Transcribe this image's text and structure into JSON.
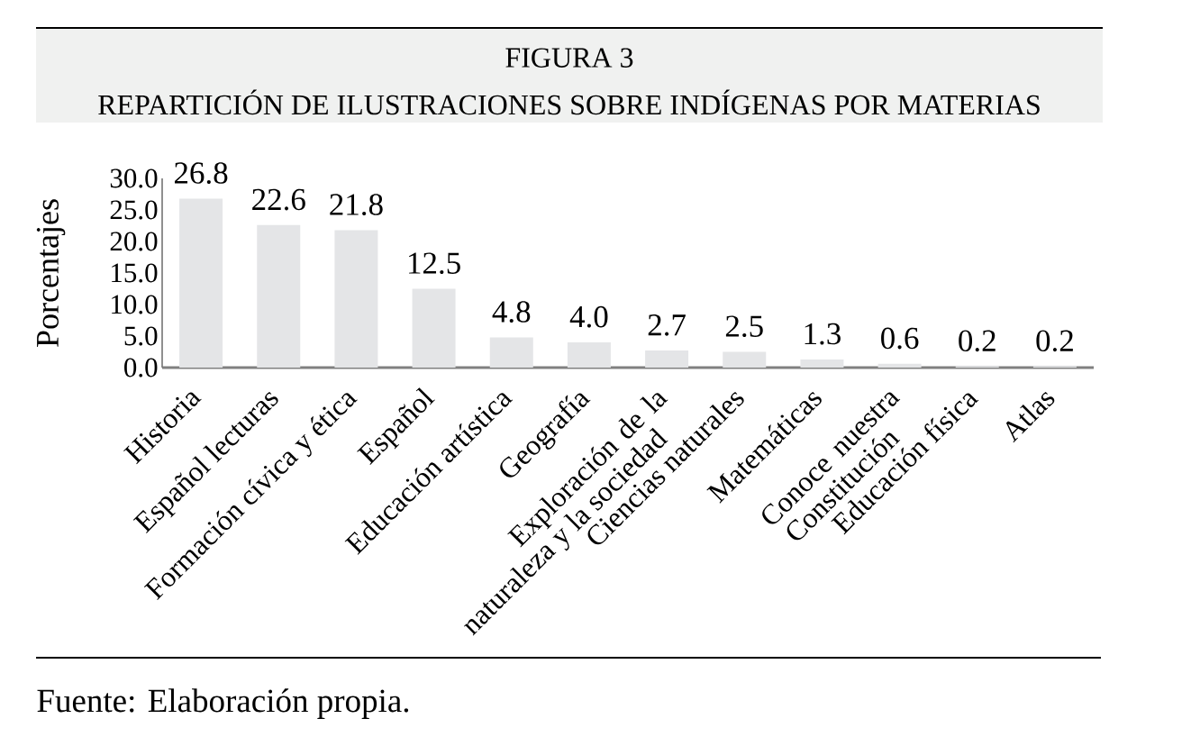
{
  "chart_data": {
    "type": "bar",
    "title": "FIGURA 3",
    "subtitle": "REPARTICIÓN DE ILUSTRACIONES SOBRE INDÍGENAS POR MATERIAS",
    "ylabel": "Porcentajes",
    "categories": [
      "Historia",
      "Español lecturas",
      "Formación cívica y ética",
      "Español",
      "Educación artística",
      "Geografía",
      "Exploración de la naturaleza y la sociedad",
      "Ciencias naturales",
      "Matemáticas",
      "Conoce nuestra Constitución",
      "Educación física",
      "Atlas"
    ],
    "values": [
      26.8,
      22.6,
      21.8,
      12.5,
      4.8,
      4.0,
      2.7,
      2.5,
      1.3,
      0.6,
      0.2,
      0.2
    ],
    "value_labels": [
      "26.8",
      "22.6",
      "21.8",
      "12.5",
      "4.8",
      "4.0",
      "2.7",
      "2.5",
      "1.3",
      "0.6",
      "0.2",
      "0.2"
    ],
    "color": "#e4e5e7",
    "ylim": [
      0,
      30
    ],
    "yticks": [
      {
        "value": 0,
        "label": "0.0"
      },
      {
        "value": 5,
        "label": "5.0"
      },
      {
        "value": 10,
        "label": "10.0"
      },
      {
        "value": 15,
        "label": "15.0"
      },
      {
        "value": 20,
        "label": "20.0"
      },
      {
        "value": 25,
        "label": "25.0"
      },
      {
        "value": 30,
        "label": "30.0"
      }
    ],
    "annotations": [
      "Fuente: Elaboración propia."
    ]
  }
}
